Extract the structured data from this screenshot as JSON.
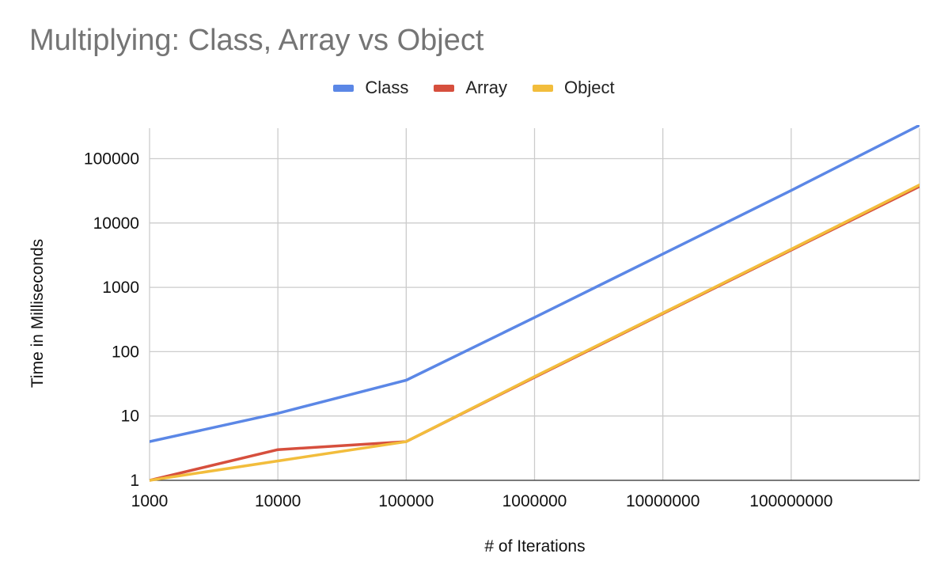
{
  "chart_data": {
    "type": "line",
    "title": "Multiplying: Class, Array vs Object",
    "xlabel": "# of Iterations",
    "ylabel": "Time in Milliseconds",
    "x_scale": "log",
    "y_scale": "log",
    "xlim": [
      1000,
      1000000000
    ],
    "ylim": [
      1,
      1000000
    ],
    "x_tick_labels": [
      "1000",
      "10000",
      "100000",
      "1000000",
      "10000000",
      "100000000"
    ],
    "y_tick_labels": [
      "1",
      "10",
      "100",
      "1000",
      "10000",
      "100000"
    ],
    "grid": true,
    "legend_position": "top",
    "x": [
      1000,
      10000,
      100000,
      1000000,
      10000000,
      100000000,
      1000000000
    ],
    "series": [
      {
        "name": "Class",
        "color": "#5b87e6",
        "values": [
          4,
          11,
          36,
          340,
          3300,
          32000,
          330000
        ]
      },
      {
        "name": "Array",
        "color": "#d64f3d",
        "values": [
          1,
          3,
          4,
          40,
          390,
          3800,
          37000
        ]
      },
      {
        "name": "Object",
        "color": "#f2bd3c",
        "values": [
          1,
          2,
          4,
          41,
          400,
          3900,
          39000
        ]
      }
    ]
  }
}
